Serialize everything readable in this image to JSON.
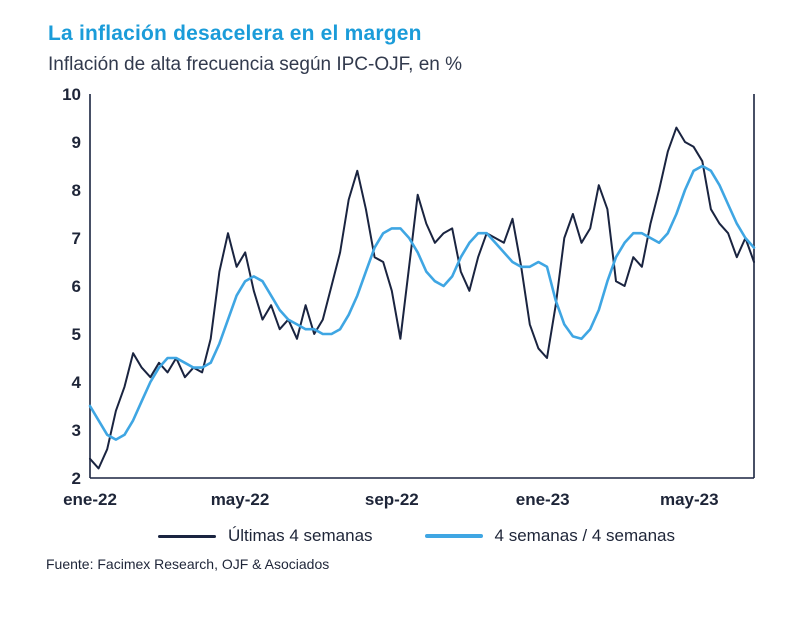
{
  "header": {
    "title": "La inflación desacelera en el margen",
    "subtitle": "Inflación de alta frecuencia según IPC-OJF, en %"
  },
  "footer": {
    "source": "Fuente: Facimex Research, OJF & Asociados"
  },
  "colors": {
    "title": "#1B9CD9",
    "subtitle": "#323A4D",
    "text": "#1E2538",
    "axis": "#1A2440",
    "navy": "#1A2440",
    "blue": "#3FA6E3"
  },
  "chart_data": {
    "type": "line",
    "title": "Inflación de alta frecuencia según IPC-OJF, en %",
    "xlabel": "",
    "ylabel": "",
    "ylim": [
      2,
      10
    ],
    "yticks": [
      2,
      3,
      4,
      5,
      6,
      7,
      8,
      9,
      10
    ],
    "grid": false,
    "legend_position": "bottom",
    "x_unit": "weeks-from-ene-22",
    "xticks": [
      {
        "pos": 0,
        "label": "ene-22"
      },
      {
        "pos": 17.4,
        "label": "may-22"
      },
      {
        "pos": 35,
        "label": "sep-22"
      },
      {
        "pos": 52.5,
        "label": "ene-23"
      },
      {
        "pos": 69.5,
        "label": "may-23"
      }
    ],
    "series": [
      {
        "name": "Últimas 4 semanas",
        "color": "#1A2440",
        "width": 2,
        "values": [
          2.4,
          2.2,
          2.6,
          3.4,
          3.9,
          4.6,
          4.3,
          4.1,
          4.4,
          4.2,
          4.5,
          4.1,
          4.3,
          4.2,
          4.9,
          6.3,
          7.1,
          6.4,
          6.7,
          5.9,
          5.3,
          5.6,
          5.1,
          5.3,
          4.9,
          5.6,
          5.0,
          5.3,
          6.0,
          6.7,
          7.8,
          8.4,
          7.6,
          6.6,
          6.5,
          5.9,
          4.9,
          6.4,
          7.9,
          7.3,
          6.9,
          7.1,
          7.2,
          6.3,
          5.9,
          6.6,
          7.1,
          7.0,
          6.9,
          7.4,
          6.4,
          5.2,
          4.7,
          4.5,
          5.6,
          7.0,
          7.5,
          6.9,
          7.2,
          8.1,
          7.6,
          6.1,
          6.0,
          6.6,
          6.4,
          7.3,
          8.0,
          8.8,
          9.3,
          9.0,
          8.9,
          8.6,
          7.6,
          7.3,
          7.1,
          6.6,
          7.0,
          6.5
        ]
      },
      {
        "name": "4 semanas / 4 semanas",
        "color": "#3FA6E3",
        "width": 2.6,
        "values": [
          3.5,
          3.2,
          2.9,
          2.8,
          2.9,
          3.2,
          3.6,
          4.0,
          4.3,
          4.5,
          4.5,
          4.4,
          4.3,
          4.3,
          4.4,
          4.8,
          5.3,
          5.8,
          6.1,
          6.2,
          6.1,
          5.8,
          5.5,
          5.3,
          5.2,
          5.1,
          5.1,
          5.0,
          5.0,
          5.1,
          5.4,
          5.8,
          6.3,
          6.8,
          7.1,
          7.2,
          7.2,
          7.0,
          6.7,
          6.3,
          6.1,
          6.0,
          6.2,
          6.6,
          6.9,
          7.1,
          7.1,
          6.9,
          6.7,
          6.5,
          6.4,
          6.4,
          6.5,
          6.4,
          5.7,
          5.2,
          4.95,
          4.9,
          5.1,
          5.5,
          6.1,
          6.6,
          6.9,
          7.1,
          7.1,
          7.0,
          6.9,
          7.1,
          7.5,
          8.0,
          8.4,
          8.5,
          8.4,
          8.1,
          7.7,
          7.3,
          7.0,
          6.8
        ]
      }
    ]
  }
}
